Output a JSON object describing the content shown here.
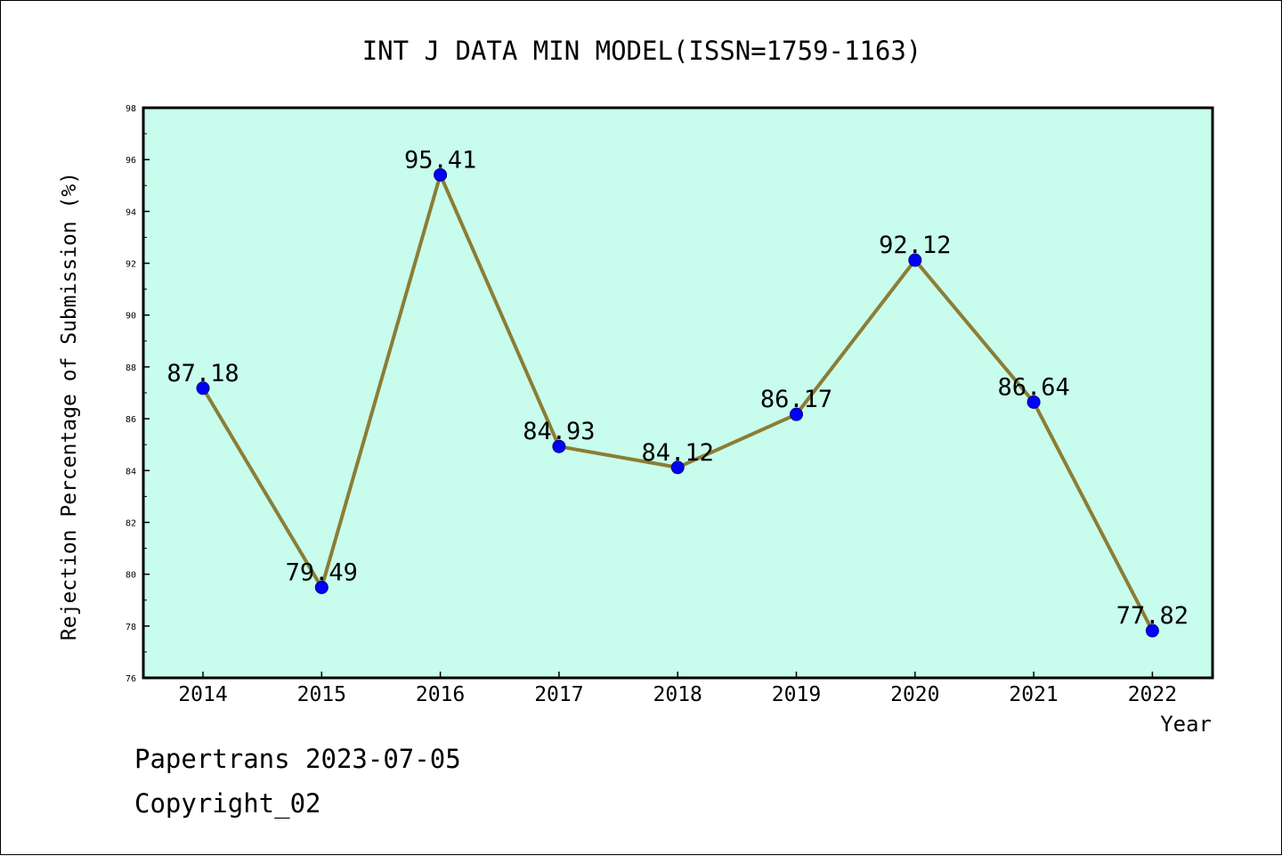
{
  "chart_data": {
    "type": "line",
    "title": "INT J DATA MIN MODEL(ISSN=1759-1163)",
    "xlabel": "Year",
    "ylabel": "Rejection Percentage of Submission (%)",
    "categories": [
      "2014",
      "2015",
      "2016",
      "2017",
      "2018",
      "2019",
      "2020",
      "2021",
      "2022"
    ],
    "series": [
      {
        "values": [
          87.18,
          79.49,
          95.41,
          84.93,
          84.12,
          86.17,
          92.12,
          86.64,
          77.82
        ],
        "data_labels": [
          "87.18",
          "79.49",
          "95.41",
          "84.93",
          "84.12",
          "86.17",
          "92.12",
          "86.64",
          "77.82"
        ]
      }
    ],
    "ylim": [
      76,
      98
    ],
    "yticks": [
      "76",
      "78",
      "80",
      "82",
      "84",
      "86",
      "88",
      "90",
      "92",
      "94",
      "96",
      "98"
    ],
    "grid": false,
    "legend": "none",
    "colors": {
      "plot_background": "#c8fcec",
      "line": "#8b7d35",
      "marker": "#0000ff",
      "marker_edge": "#000080"
    }
  },
  "footer": {
    "line1": "Papertrans 2023-07-05",
    "line2": "Copyright_02"
  }
}
